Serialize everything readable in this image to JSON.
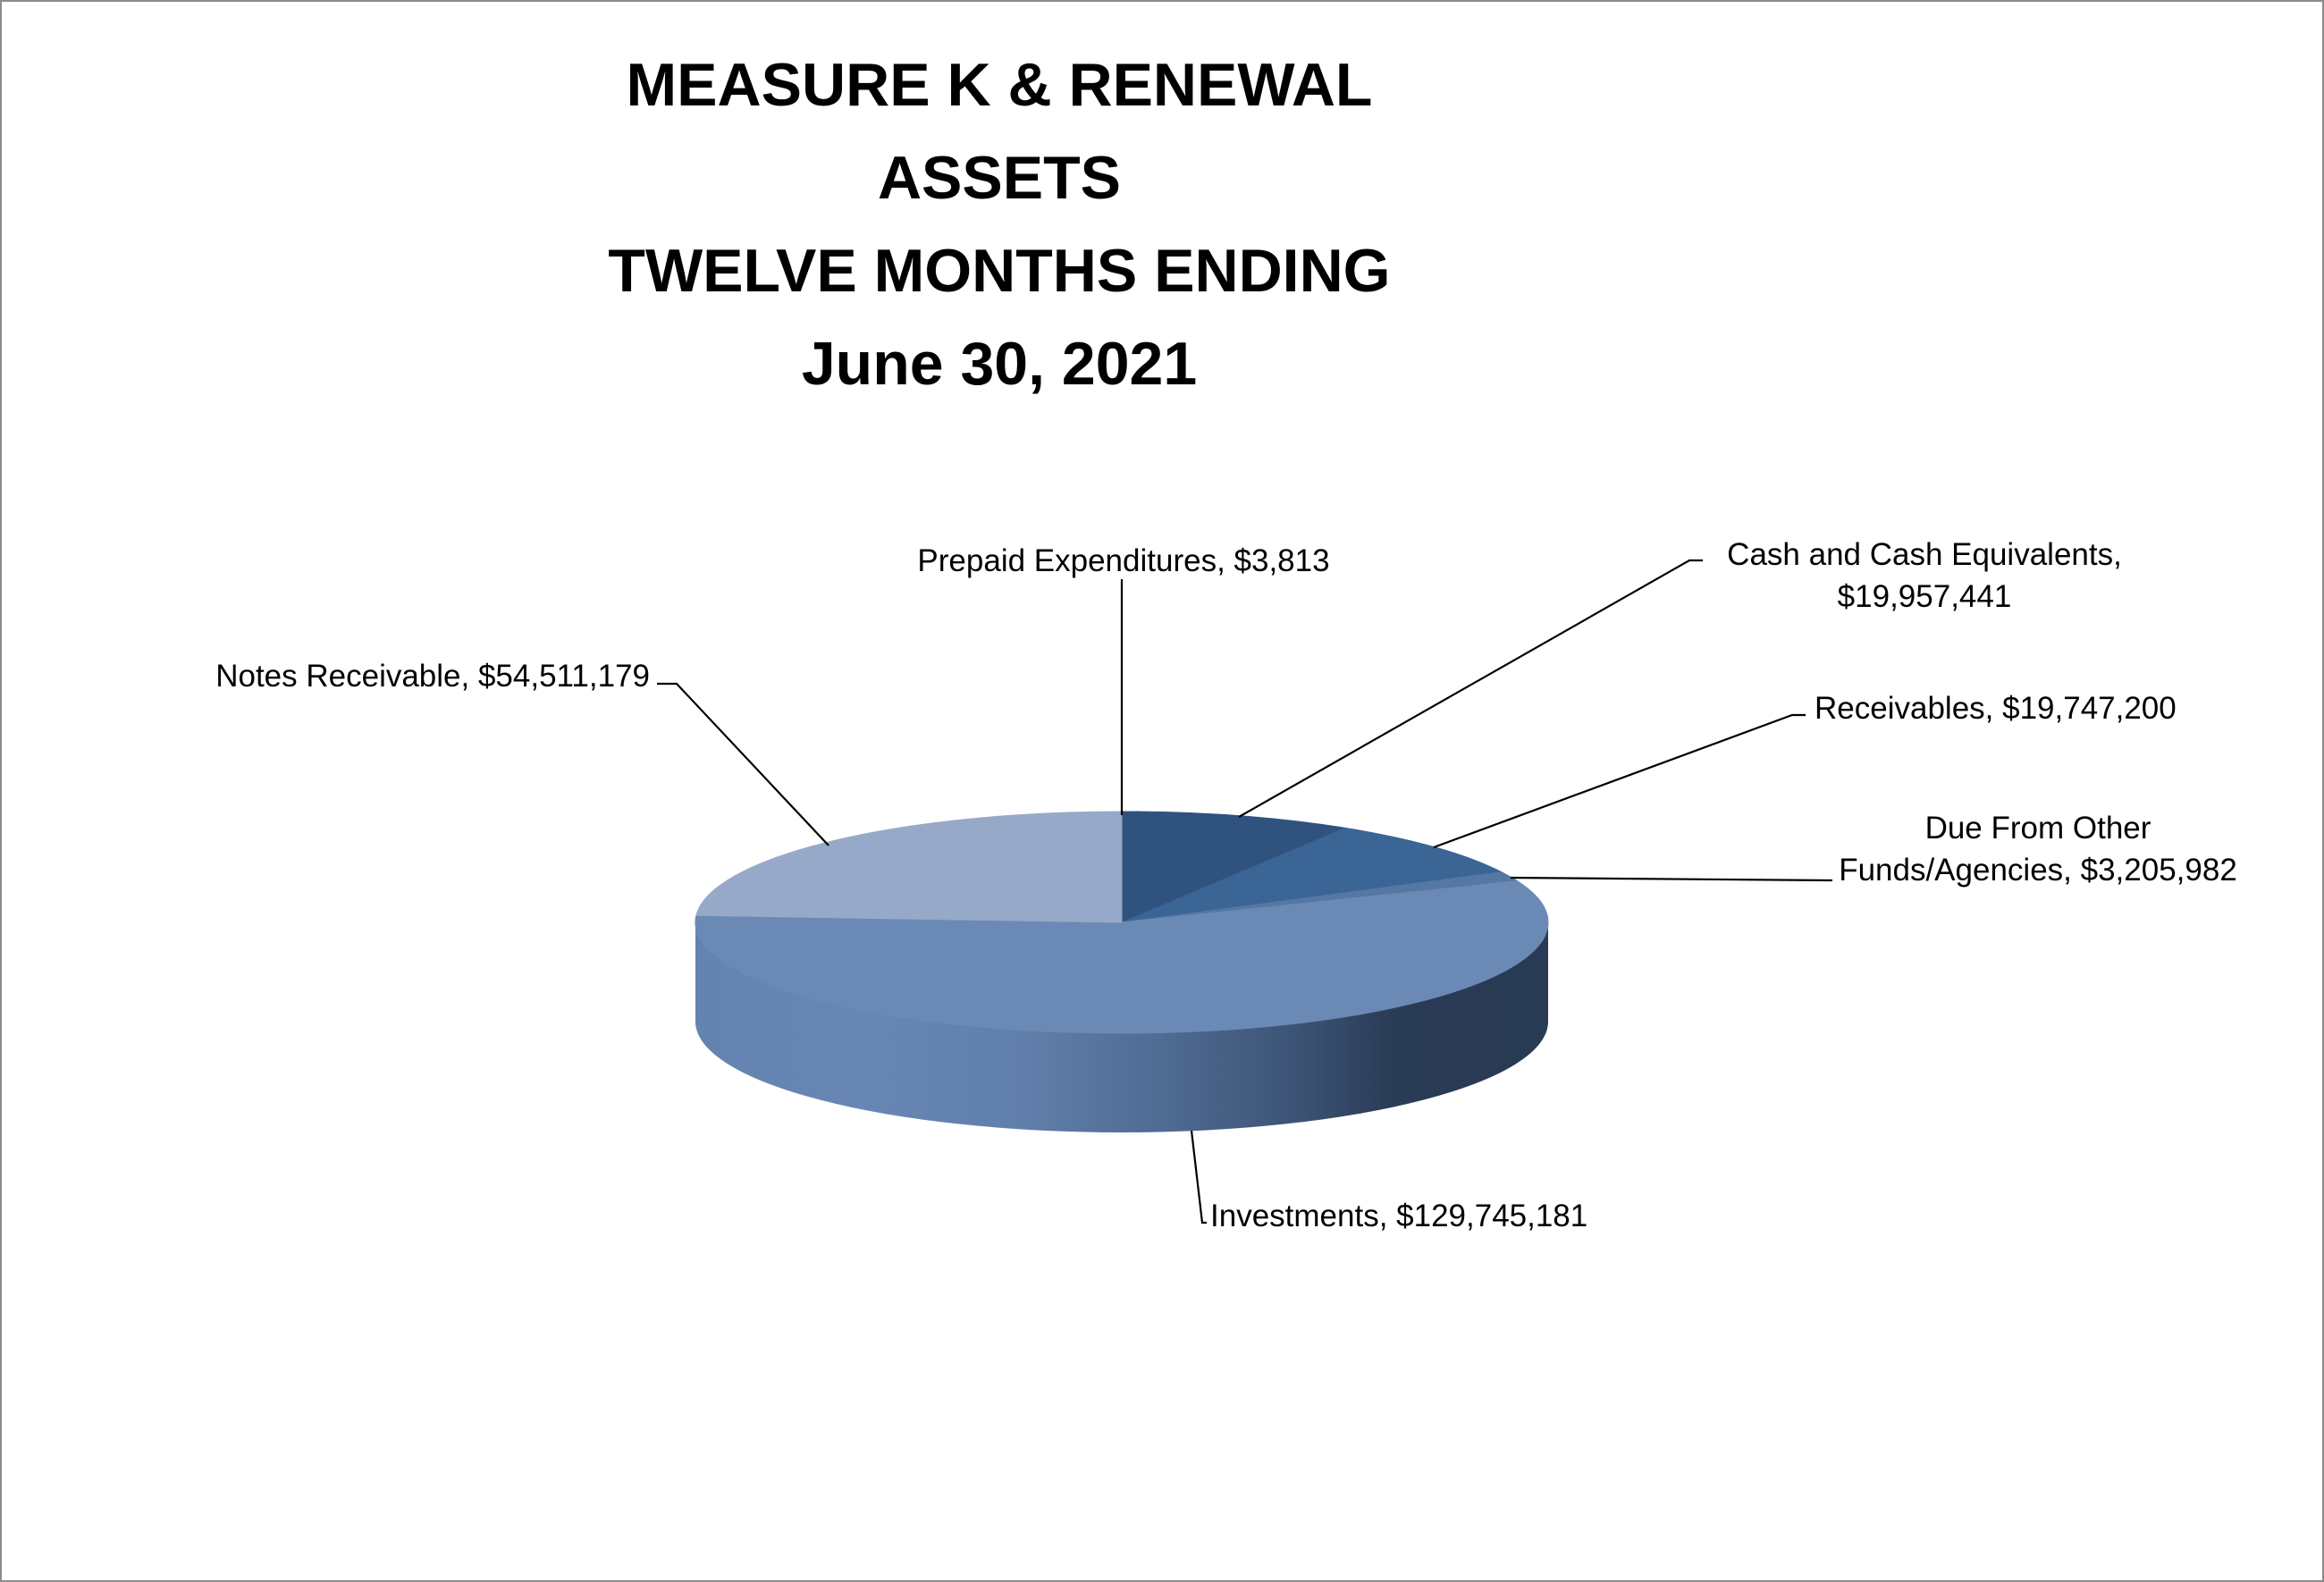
{
  "chart_data": {
    "type": "pie",
    "style": "3d",
    "title_lines": [
      "MEASURE K & RENEWAL",
      "ASSETS",
      "TWELVE MONTHS ENDING",
      "June 30, 2021"
    ],
    "series": [
      {
        "name": "Prepaid Expenditures",
        "value": 3813,
        "label_lines": [
          "Prepaid Expenditures, $3,813"
        ],
        "color": "#97a9c8"
      },
      {
        "name": "Cash and Cash Equivalents",
        "value": 19957441,
        "label_lines": [
          "Cash and Cash Equivalents,",
          "$19,957,441"
        ],
        "color": "#30527f"
      },
      {
        "name": "Receivables",
        "value": 19747200,
        "label_lines": [
          "Receivables, $19,747,200"
        ],
        "color": "#3a6595"
      },
      {
        "name": "Due From Other Funds/Agencies",
        "value": 3205982,
        "label_lines": [
          "Due From Other",
          "Funds/Agencies, $3,205,982"
        ],
        "color": "#5577a4"
      },
      {
        "name": "Investments",
        "value": 129745181,
        "label_lines": [
          "Investments, $129,745,181"
        ],
        "color": "#6a8ab5"
      },
      {
        "name": "Notes Receivable",
        "value": 54511179,
        "label_lines": [
          "Notes Receivable, $54,511,179"
        ],
        "color": "#97a9c8"
      }
    ],
    "legend": "none",
    "data_labels": "outside with leader lines"
  }
}
